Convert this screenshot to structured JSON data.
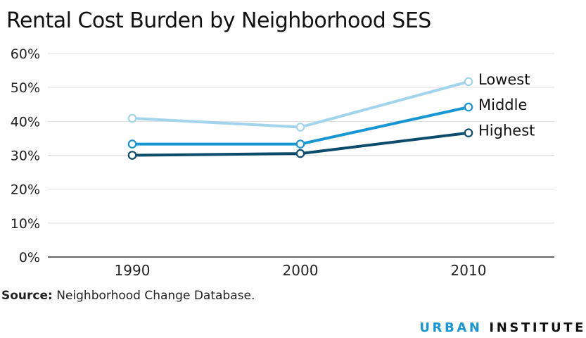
{
  "chart_data": {
    "type": "line",
    "title": "Rental Cost Burden by Neighborhood SES",
    "xlabel": "",
    "ylabel": "",
    "categories": [
      "1990",
      "2000",
      "2010"
    ],
    "ylim": [
      0,
      0.6
    ],
    "yticks": [
      "0%",
      "10%",
      "20%",
      "30%",
      "40%",
      "50%",
      "60%"
    ],
    "grid": true,
    "legend": "direct labels at line ends",
    "series": [
      {
        "name": "Lowest",
        "values": [
          0.409,
          0.383,
          0.517
        ],
        "color": "#a2d4ec"
      },
      {
        "name": "Middle",
        "values": [
          0.333,
          0.333,
          0.442
        ],
        "color": "#1696d2"
      },
      {
        "name": "Highest",
        "values": [
          0.3,
          0.305,
          0.366
        ],
        "color": "#0a4c6a"
      }
    ]
  },
  "footer": {
    "source_label": "Source:",
    "source_text": " Neighborhood Change Database.",
    "brand_part1": "URBAN",
    "brand_part2": "INSTITUTE"
  }
}
